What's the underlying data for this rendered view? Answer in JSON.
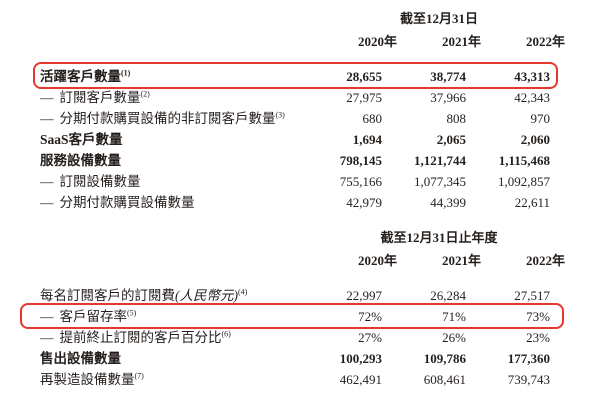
{
  "accent_color": "#e5372b",
  "tables": [
    {
      "period_header": "截至12月31日",
      "years": [
        "2020年",
        "2021年",
        "2022年"
      ],
      "rows": [
        {
          "prefix": "",
          "label": "活躍客戶數量",
          "italic": "",
          "sup": "(1)",
          "bold": true,
          "highlight": true,
          "values": [
            "28,655",
            "38,774",
            "43,313"
          ]
        },
        {
          "prefix": "—",
          "label": "訂閱客戶數量",
          "italic": "",
          "sup": "(2)",
          "bold": false,
          "highlight": false,
          "values": [
            "27,975",
            "37,966",
            "42,343"
          ]
        },
        {
          "prefix": "—",
          "label": "分期付款購買設備的非訂閱客戶數量",
          "italic": "",
          "sup": "(3)",
          "bold": false,
          "highlight": false,
          "values": [
            "680",
            "808",
            "970"
          ]
        },
        {
          "prefix": "",
          "label": "SaaS客戶數量",
          "italic": "",
          "sup": "",
          "bold": true,
          "highlight": false,
          "values": [
            "1,694",
            "2,065",
            "2,060"
          ]
        },
        {
          "prefix": "",
          "label": "服務設備數量",
          "italic": "",
          "sup": "",
          "bold": true,
          "highlight": false,
          "values": [
            "798,145",
            "1,121,744",
            "1,115,468"
          ]
        },
        {
          "prefix": "—",
          "label": "訂閱設備數量",
          "italic": "",
          "sup": "",
          "bold": false,
          "highlight": false,
          "values": [
            "755,166",
            "1,077,345",
            "1,092,857"
          ]
        },
        {
          "prefix": "—",
          "label": "分期付款購買設備數量",
          "italic": "",
          "sup": "",
          "bold": false,
          "highlight": false,
          "values": [
            "42,979",
            "44,399",
            "22,611"
          ]
        }
      ]
    },
    {
      "period_header": "截至12月31日止年度",
      "years": [
        "2020年",
        "2021年",
        "2022年"
      ],
      "rows": [
        {
          "prefix": "",
          "label": "每名訂閱客戶的訂閱費",
          "italic": "(人民幣元)",
          "sup": "(4)",
          "bold": false,
          "highlight": false,
          "values": [
            "22,997",
            "26,284",
            "27,517"
          ]
        },
        {
          "prefix": "—",
          "label": "客戶留存率",
          "italic": "",
          "sup": "(5)",
          "bold": false,
          "highlight": true,
          "values": [
            "72%",
            "71%",
            "73%"
          ]
        },
        {
          "prefix": "—",
          "label": "提前終止訂閱的客戶百分比",
          "italic": "",
          "sup": "(6)",
          "bold": false,
          "highlight": false,
          "values": [
            "27%",
            "26%",
            "23%"
          ]
        },
        {
          "prefix": "",
          "label": "售出設備數量",
          "italic": "",
          "sup": "",
          "bold": true,
          "highlight": false,
          "values": [
            "100,293",
            "109,786",
            "177,360"
          ]
        },
        {
          "prefix": "",
          "label": "再製造設備數量",
          "italic": "",
          "sup": "(7)",
          "bold": false,
          "highlight": false,
          "values": [
            "462,491",
            "608,461",
            "739,743"
          ]
        }
      ]
    }
  ]
}
